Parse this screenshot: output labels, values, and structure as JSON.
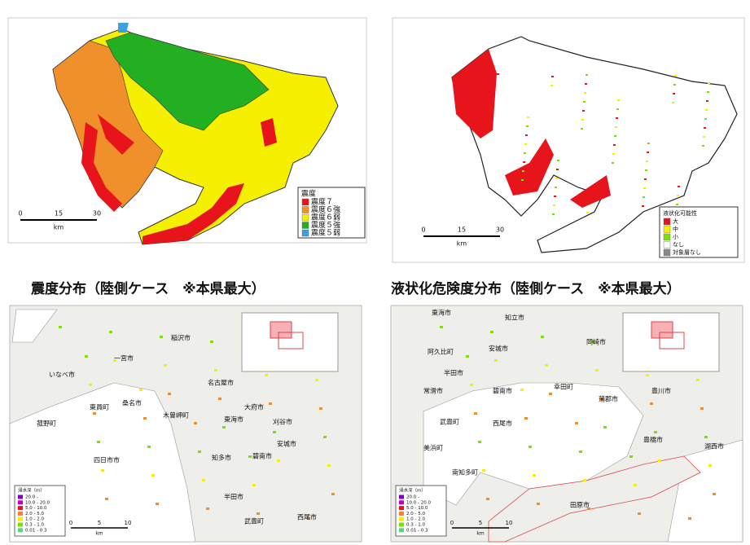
{
  "top_maps": [
    {
      "legend_title": "震度",
      "legend_items": [
        "震度７",
        "震度６強",
        "震度６弱",
        "震度５強",
        "震度５弱"
      ],
      "scale_labels": [
        "0",
        "15",
        "30"
      ],
      "scale_unit": "km",
      "caption": "震度分布（陸側ケース　※本県最大）"
    },
    {
      "legend_title": "液状化可能性",
      "legend_items": [
        "大",
        "中",
        "小",
        "なし",
        "対象層なし"
      ],
      "scale_labels": [
        "0",
        "15",
        "30"
      ],
      "scale_unit": "km",
      "caption": "液状化危険度分布（陸側ケース　※本県最大）"
    }
  ],
  "bottom_maps": [
    {
      "place_names": [
        "いなべ市",
        "東員町",
        "菰野町",
        "四日市市",
        "桑名市",
        "木曽岬町",
        "稲沢市",
        "一宮市",
        "名古屋市",
        "東海市",
        "大府市",
        "知多市",
        "刈谷市",
        "安城市",
        "碧南市",
        "西尾市",
        "半田市",
        "武豊町"
      ],
      "legend_title": "浸水深（m）",
      "legend_items": [
        "20.0 -",
        "10.0 - 20.0",
        "5.0 - 10.0",
        "2.0 - 5.0",
        "1.0 - 2.0",
        "0.3 - 1.0",
        "0.01 - 0.3"
      ],
      "scale_labels": [
        "0",
        "5",
        "10"
      ],
      "scale_unit": "km"
    },
    {
      "place_names": [
        "東海市",
        "知立市",
        "阿久比町",
        "安城市",
        "岡崎市",
        "半田市",
        "常滑市",
        "碧南市",
        "幸田町",
        "西尾市",
        "蒲郡市",
        "豊川市",
        "武豊町",
        "美浜町",
        "南知多町",
        "豊橋市",
        "湖西市",
        "田原市"
      ],
      "legend_title": "浸水深（m）",
      "legend_items": [
        "20.0 -",
        "10.0 - 20.0",
        "5.0 - 10.0",
        "2.0 - 5.0",
        "1.0 - 2.0",
        "0.3 - 1.0",
        "0.01 - 0.3"
      ],
      "scale_labels": [
        "0",
        "5",
        "10"
      ],
      "scale_unit": "km"
    }
  ]
}
